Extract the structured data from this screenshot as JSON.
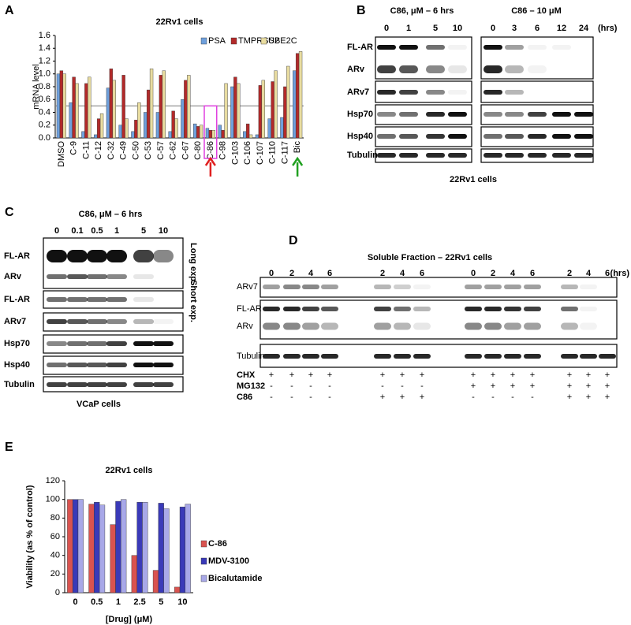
{
  "panel_labels": [
    "A",
    "B",
    "C",
    "D",
    "E"
  ],
  "chart_data": [
    {
      "type": "bar",
      "title": "22Rv1 cells",
      "y_label": "mRNA level",
      "categories": [
        "DMSO",
        "C-9",
        "C-11",
        "C-12",
        "C-32",
        "C-49",
        "C-50",
        "C-53",
        "C-57",
        "C-62",
        "C-67",
        "C-80",
        "C-86",
        "C-98",
        "C-103",
        "C-106",
        "C-107",
        "C-110",
        "C-117",
        "Bic"
      ],
      "series": [
        {
          "name": "PSA",
          "color": "#6fa0dc",
          "values": [
            1.0,
            0.55,
            0.1,
            0.05,
            0.78,
            0.2,
            0.1,
            0.4,
            0.4,
            0.1,
            0.6,
            0.22,
            0.15,
            0.2,
            0.8,
            0.1,
            0.05,
            0.3,
            0.32,
            1.05
          ]
        },
        {
          "name": "TMPRSS2",
          "color": "#b22a2a",
          "values": [
            1.05,
            0.95,
            0.85,
            0.3,
            1.08,
            0.98,
            0.28,
            0.75,
            0.98,
            0.42,
            0.9,
            0.18,
            0.12,
            0.12,
            0.95,
            0.22,
            0.82,
            0.88,
            0.8,
            1.32
          ]
        },
        {
          "name": "UBE2C",
          "color": "#e8dca0",
          "values": [
            1.0,
            0.85,
            0.95,
            0.38,
            0.9,
            0.3,
            0.55,
            1.08,
            1.05,
            0.3,
            0.98,
            0.2,
            0.12,
            0.85,
            0.85,
            0.05,
            0.9,
            1.05,
            1.12,
            1.35
          ]
        }
      ],
      "ylim": [
        0,
        1.6
      ],
      "yticks": [
        {
          "value": 0,
          "label": "0.0"
        },
        0.2,
        0.4,
        0.6,
        0.8,
        {
          "value": 1,
          "label": "1.0"
        },
        1.2,
        1.4,
        1.6
      ],
      "reference_line": 0.5,
      "legend": "top-right"
    },
    {
      "type": "bar",
      "title": "22Rv1 cells",
      "y_label": "Viability (as % of control)",
      "x_label": "[Drug] (μM)",
      "categories": [
        "0",
        "0.5",
        "1",
        "2.5",
        "5",
        "10"
      ],
      "series": [
        {
          "name": "C-86",
          "color": "#d9534f",
          "values": [
            100,
            95,
            73,
            40,
            24,
            6
          ]
        },
        {
          "name": "MDV-3100",
          "color": "#3a3ab8",
          "values": [
            100,
            97,
            98,
            97,
            96,
            92
          ]
        },
        {
          "name": "Bicalutamide",
          "color": "#a8a8e8",
          "values": [
            100,
            94,
            100,
            97,
            90,
            95
          ]
        }
      ],
      "ylim": [
        0,
        120
      ],
      "yticks": [
        0,
        20,
        40,
        60,
        80,
        100,
        120
      ],
      "legend": "right"
    }
  ],
  "blots": {
    "B": {
      "header_left": "C86, μM – 6 hrs",
      "lanes_left": [
        "0",
        "1",
        "5",
        "10"
      ],
      "header_right": "C86 – 10 μM",
      "lanes_right": [
        "0",
        "3",
        "6",
        "12",
        "24"
      ],
      "unit": "(hrs)",
      "rows": [
        "FL-AR",
        "ARv",
        "ARv7",
        "Hsp70",
        "Hsp40",
        "Tubulin"
      ],
      "footer": "22Rv1 cells"
    },
    "C": {
      "header": "C86, μM – 6 hrs",
      "lanes": [
        "0",
        "0.1",
        "0.5",
        "1",
        "5",
        "10"
      ],
      "rows": [
        "FL-AR",
        "ARv",
        "FL-AR",
        "ARv7",
        "Hsp70",
        "Hsp40",
        "Tubulin"
      ],
      "exposures": [
        "Long exp.",
        "Short exp."
      ],
      "footer": "VCaP cells"
    },
    "D": {
      "title": "Soluble Fraction – 22Rv1 cells",
      "lanes": [
        "0",
        "2",
        "4",
        "6",
        "2",
        "4",
        "6",
        "0",
        "2",
        "4",
        "6",
        "2",
        "4",
        "6"
      ],
      "unit": "(hrs)",
      "rows": [
        "ARv7",
        "FL-AR",
        "ARv",
        "Tubulin"
      ],
      "treatments": [
        {
          "label": "CHX",
          "signs": [
            "+",
            "+",
            "+",
            "+",
            "+",
            "+",
            "+",
            "+",
            "+",
            "+",
            "+",
            "+",
            "+",
            "+"
          ]
        },
        {
          "label": "MG132",
          "signs": [
            "-",
            "-",
            "-",
            "-",
            "-",
            "-",
            "-",
            "+",
            "+",
            "+",
            "+",
            "+",
            "+",
            "+"
          ]
        },
        {
          "label": "C86",
          "signs": [
            "-",
            "-",
            "-",
            "-",
            "+",
            "+",
            "+",
            "-",
            "-",
            "-",
            "-",
            "+",
            "+",
            "+"
          ]
        }
      ]
    }
  }
}
